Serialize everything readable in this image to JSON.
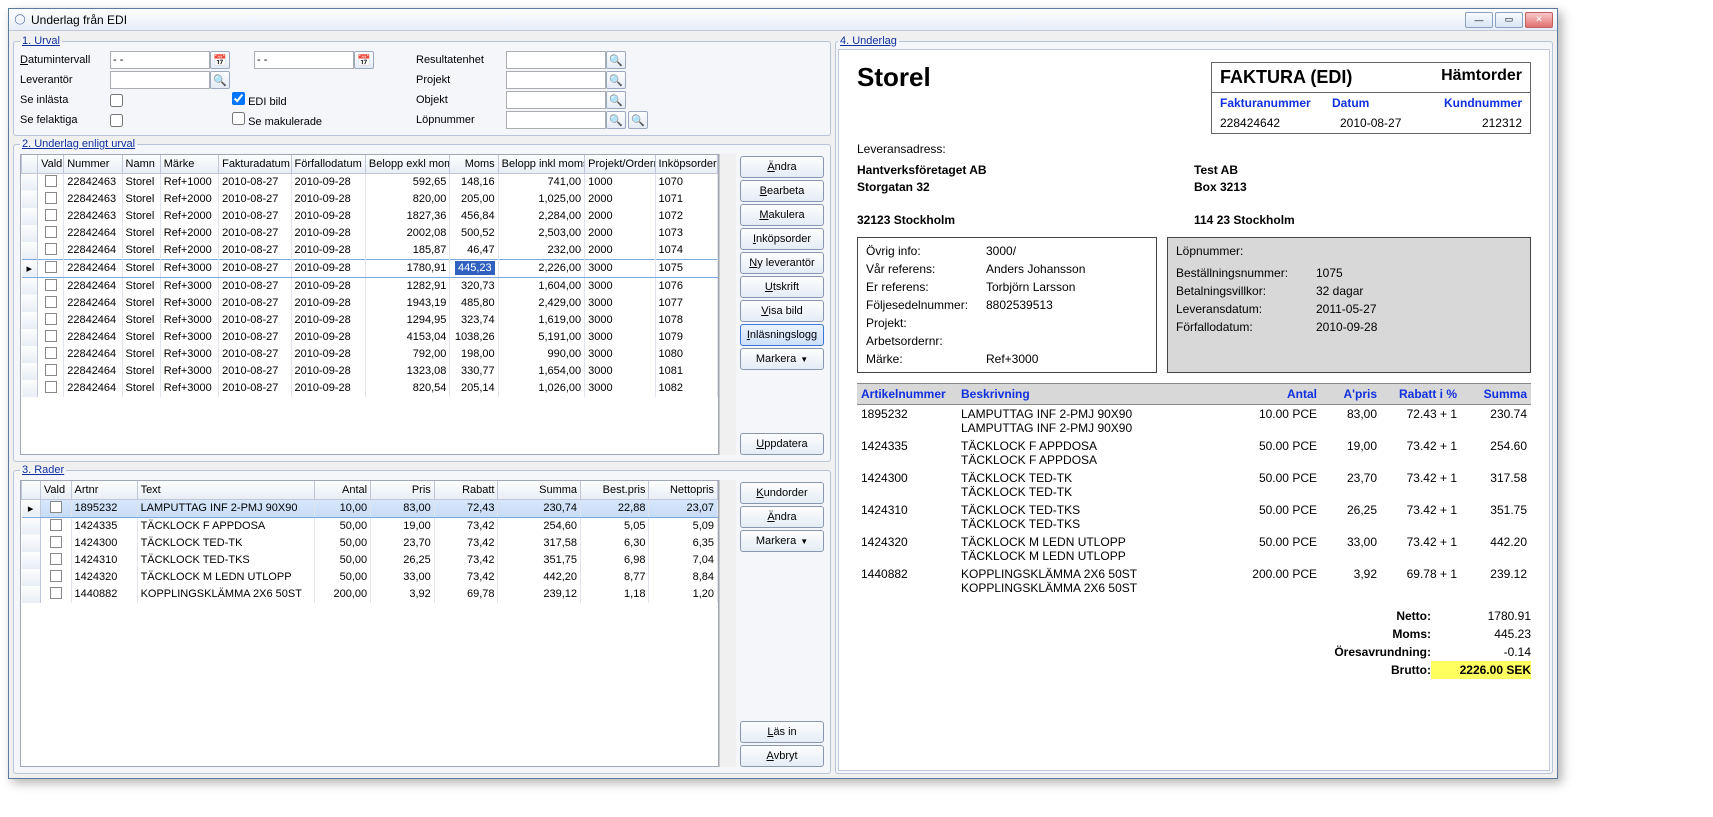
{
  "window": {
    "title": "Underlag från EDI"
  },
  "sections": {
    "s1": "1. Urval",
    "s2": "2. Underlag enligt urval",
    "s3": "3. Rader",
    "s4": "4. Underlag"
  },
  "urval": {
    "labels": {
      "datumintervall": "Datumintervall",
      "leverantor": "Leverantör",
      "seInlasta": "Se inlästa",
      "seFelaktiga": "Se felaktiga",
      "ediBild": "EDI bild",
      "seMakulerade": "Se makulerade",
      "resultatenhet": "Resultatenhet",
      "projekt": "Projekt",
      "objekt": "Objekt",
      "lopnummer": "Löpnummer"
    },
    "dateFrom": "- -",
    "dateTo": "- -",
    "ediBildChecked": true
  },
  "underlag": {
    "cols": [
      "Vald",
      "Nummer",
      "Namn",
      "Märke",
      "Fakturadatum",
      "Förfallodatum",
      "Belopp exkl moms",
      "Moms",
      "Belopp inkl moms",
      "Projekt/Ordernum",
      "Inköpsorder"
    ],
    "rows": [
      {
        "num": "22842463",
        "namn": "Storel",
        "marke": "Ref+1000",
        "fdat": "2010-08-27",
        "ffdat": "2010-09-28",
        "exkl": "592,65",
        "moms": "148,16",
        "inkl": "741,00",
        "proj": "1000",
        "ink": "1070"
      },
      {
        "num": "22842463",
        "namn": "Storel",
        "marke": "Ref+2000",
        "fdat": "2010-08-27",
        "ffdat": "2010-09-28",
        "exkl": "820,00",
        "moms": "205,00",
        "inkl": "1,025,00",
        "proj": "2000",
        "ink": "1071"
      },
      {
        "num": "22842463",
        "namn": "Storel",
        "marke": "Ref+2000",
        "fdat": "2010-08-27",
        "ffdat": "2010-09-28",
        "exkl": "1827,36",
        "moms": "456,84",
        "inkl": "2,284,00",
        "proj": "2000",
        "ink": "1072"
      },
      {
        "num": "22842464",
        "namn": "Storel",
        "marke": "Ref+2000",
        "fdat": "2010-08-27",
        "ffdat": "2010-09-28",
        "exkl": "2002,08",
        "moms": "500,52",
        "inkl": "2,503,00",
        "proj": "2000",
        "ink": "1073"
      },
      {
        "num": "22842464",
        "namn": "Storel",
        "marke": "Ref+2000",
        "fdat": "2010-08-27",
        "ffdat": "2010-09-28",
        "exkl": "185,87",
        "moms": "46,47",
        "inkl": "232,00",
        "proj": "2000",
        "ink": "1074"
      },
      {
        "num": "22842464",
        "namn": "Storel",
        "marke": "Ref+3000",
        "fdat": "2010-08-27",
        "ffdat": "2010-09-28",
        "exkl": "1780,91",
        "moms": "445,23",
        "inkl": "2,226,00",
        "proj": "3000",
        "ink": "1075",
        "sel": true,
        "momsHl": true
      },
      {
        "num": "22842464",
        "namn": "Storel",
        "marke": "Ref+3000",
        "fdat": "2010-08-27",
        "ffdat": "2010-09-28",
        "exkl": "1282,91",
        "moms": "320,73",
        "inkl": "1,604,00",
        "proj": "3000",
        "ink": "1076"
      },
      {
        "num": "22842464",
        "namn": "Storel",
        "marke": "Ref+3000",
        "fdat": "2010-08-27",
        "ffdat": "2010-09-28",
        "exkl": "1943,19",
        "moms": "485,80",
        "inkl": "2,429,00",
        "proj": "3000",
        "ink": "1077"
      },
      {
        "num": "22842464",
        "namn": "Storel",
        "marke": "Ref+3000",
        "fdat": "2010-08-27",
        "ffdat": "2010-09-28",
        "exkl": "1294,95",
        "moms": "323,74",
        "inkl": "1,619,00",
        "proj": "3000",
        "ink": "1078"
      },
      {
        "num": "22842464",
        "namn": "Storel",
        "marke": "Ref+3000",
        "fdat": "2010-08-27",
        "ffdat": "2010-09-28",
        "exkl": "4153,04",
        "moms": "1038,26",
        "inkl": "5,191,00",
        "proj": "3000",
        "ink": "1079"
      },
      {
        "num": "22842464",
        "namn": "Storel",
        "marke": "Ref+3000",
        "fdat": "2010-08-27",
        "ffdat": "2010-09-28",
        "exkl": "792,00",
        "moms": "198,00",
        "inkl": "990,00",
        "proj": "3000",
        "ink": "1080"
      },
      {
        "num": "22842464",
        "namn": "Storel",
        "marke": "Ref+3000",
        "fdat": "2010-08-27",
        "ffdat": "2010-09-28",
        "exkl": "1323,08",
        "moms": "330,77",
        "inkl": "1,654,00",
        "proj": "3000",
        "ink": "1081"
      },
      {
        "num": "22842464",
        "namn": "Storel",
        "marke": "Ref+3000",
        "fdat": "2010-08-27",
        "ffdat": "2010-09-28",
        "exkl": "820,54",
        "moms": "205,14",
        "inkl": "1,026,00",
        "proj": "3000",
        "ink": "1082"
      }
    ],
    "btns": [
      "Ändra",
      "Bearbeta",
      "Makulera",
      "Inköpsorder",
      "Ny leverantör",
      "Utskrift",
      "Visa bild",
      "Inläsningslogg"
    ],
    "btnMarkera": "Markera",
    "btnUppdatera": "Uppdatera"
  },
  "rader": {
    "cols": [
      "Vald",
      "Artnr",
      "Text",
      "Antal",
      "Pris",
      "Rabatt",
      "Summa",
      "Best.pris",
      "Nettopris"
    ],
    "rows": [
      {
        "art": "1895232",
        "txt": "LAMPUTTAG INF 2-PMJ 90X90",
        "antal": "10,00",
        "pris": "83,00",
        "rabatt": "72,43",
        "summa": "230,74",
        "best": "22,88",
        "netto": "23,07",
        "sel": true
      },
      {
        "art": "1424335",
        "txt": "TÄCKLOCK F APPDOSA",
        "antal": "50,00",
        "pris": "19,00",
        "rabatt": "73,42",
        "summa": "254,60",
        "best": "5,05",
        "netto": "5,09"
      },
      {
        "art": "1424300",
        "txt": "TÄCKLOCK TED-TK",
        "antal": "50,00",
        "pris": "23,70",
        "rabatt": "73,42",
        "summa": "317,58",
        "best": "6,30",
        "netto": "6,35"
      },
      {
        "art": "1424310",
        "txt": "TÄCKLOCK TED-TKS",
        "antal": "50,00",
        "pris": "26,25",
        "rabatt": "73,42",
        "summa": "351,75",
        "best": "6,98",
        "netto": "7,04"
      },
      {
        "art": "1424320",
        "txt": "TÄCKLOCK M LEDN UTLOPP",
        "antal": "50,00",
        "pris": "33,00",
        "rabatt": "73,42",
        "summa": "442,20",
        "best": "8,77",
        "netto": "8,84"
      },
      {
        "art": "1440882",
        "txt": "KOPPLINGSKLÄMMA 2X6 50ST",
        "antal": "200,00",
        "pris": "3,92",
        "rabatt": "69,78",
        "summa": "239,12",
        "best": "1,18",
        "netto": "1,20"
      }
    ],
    "btns": [
      "Kundorder",
      "Ändra"
    ],
    "btnMarkera": "Markera",
    "btnLasIn": "Läs in",
    "btnAvbryt": "Avbryt"
  },
  "invoice": {
    "vendor": "Storel",
    "box": {
      "title": "FAKTURA (EDI)",
      "right": "Hämtorder",
      "hdr": [
        "Fakturanummer",
        "Datum",
        "Kundnummer"
      ],
      "vals": [
        "228424642",
        "2010-08-27",
        "212312"
      ]
    },
    "levadr_label": "Leveransadress:",
    "buyer": [
      "Hantverksföretaget AB",
      "Storgatan 32",
      "",
      "32123  Stockholm"
    ],
    "seller": [
      "Test AB",
      "Box 3213",
      "",
      "114 23 Stockholm"
    ],
    "info1": [
      {
        "k": "Övrig info:",
        "v": "3000/"
      },
      {
        "k": "Vår referens:",
        "v": "Anders Johansson"
      },
      {
        "k": "Er referens:",
        "v": "Torbjörn Larsson"
      },
      {
        "k": "Följesedelnummer:",
        "v": "8802539513"
      },
      {
        "k": "Projekt:",
        "v": ""
      },
      {
        "k": "Arbetsordernr:",
        "v": ""
      },
      {
        "k": "Märke:",
        "v": "Ref+3000"
      }
    ],
    "info2_title": "Löpnummer:",
    "info2": [
      {
        "k": "Beställningsnummer:",
        "v": "1075"
      },
      {
        "k": "Betalningsvillkor:",
        "v": "32 dagar"
      },
      {
        "k": "Leveransdatum:",
        "v": "2011-05-27"
      },
      {
        "k": "Förfallodatum:",
        "v": "2010-09-28"
      }
    ],
    "tcols": [
      "Artikelnummer",
      "Beskrivning",
      "Antal",
      "A'pris",
      "Rabatt i %",
      "Summa"
    ],
    "trows": [
      {
        "art": "1895232",
        "d1": "LAMPUTTAG INF 2-PMJ 90X90",
        "d2": "LAMPUTTAG INF 2-PMJ 90X90",
        "antal": "10.00 PCE",
        "pris": "83,00",
        "rabatt": "72.43 + 1",
        "summa": "230.74"
      },
      {
        "art": "1424335",
        "d1": "TÄCKLOCK F APPDOSA",
        "d2": "TÄCKLOCK F APPDOSA",
        "antal": "50.00 PCE",
        "pris": "19,00",
        "rabatt": "73.42 + 1",
        "summa": "254.60"
      },
      {
        "art": "1424300",
        "d1": "TÄCKLOCK TED-TK",
        "d2": "TÄCKLOCK TED-TK",
        "antal": "50.00 PCE",
        "pris": "23,70",
        "rabatt": "73.42 + 1",
        "summa": "317.58"
      },
      {
        "art": "1424310",
        "d1": "TÄCKLOCK TED-TKS",
        "d2": "TÄCKLOCK TED-TKS",
        "antal": "50.00 PCE",
        "pris": "26,25",
        "rabatt": "73.42 + 1",
        "summa": "351.75"
      },
      {
        "art": "1424320",
        "d1": "TÄCKLOCK M LEDN UTLOPP",
        "d2": "TÄCKLOCK M LEDN UTLOPP",
        "antal": "50.00 PCE",
        "pris": "33,00",
        "rabatt": "73.42 + 1",
        "summa": "442.20"
      },
      {
        "art": "1440882",
        "d1": "KOPPLINGSKLÄMMA 2X6 50ST",
        "d2": "KOPPLINGSKLÄMMA 2X6 50ST",
        "antal": "200.00 PCE",
        "pris": "3,92",
        "rabatt": "69.78 + 1",
        "summa": "239.12"
      }
    ],
    "totals": [
      {
        "k": "Netto:",
        "v": "1780.91"
      },
      {
        "k": "Moms:",
        "v": "445.23"
      },
      {
        "k": "Öresavrundning:",
        "v": "-0.14"
      },
      {
        "k": "Brutto:",
        "v": "2226.00 SEK",
        "hl": true
      }
    ]
  }
}
